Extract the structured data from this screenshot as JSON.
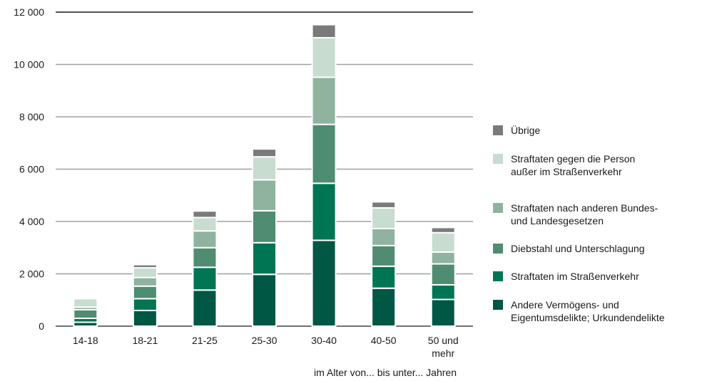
{
  "chart_data": {
    "type": "bar",
    "stacked": true,
    "title": "",
    "xlabel": "im Alter von... bis unter... Jahren",
    "ylabel": "",
    "ylim": [
      0,
      12000
    ],
    "yticks": [
      0,
      2000,
      4000,
      6000,
      8000,
      10000,
      12000
    ],
    "ytick_labels": [
      "0",
      "2 000",
      "4 000",
      "6 000",
      "8 000",
      "10 000",
      "12 000"
    ],
    "grid": true,
    "legend_position": "right",
    "categories": [
      [
        "14-18"
      ],
      [
        "18-21"
      ],
      [
        "21-25"
      ],
      [
        "25-30"
      ],
      [
        "30-40"
      ],
      [
        "40-50"
      ],
      [
        "50 und",
        "mehr"
      ]
    ],
    "series": [
      {
        "name": [
          "Andere Vermögens- und",
          "Eigentumsdelikte; Urkundendelikte"
        ],
        "color": "#005744",
        "values": [
          150,
          600,
          1380,
          1980,
          3280,
          1450,
          1020
        ]
      },
      {
        "name": [
          "Straftaten im Straßenverkehr"
        ],
        "color": "#007554",
        "values": [
          150,
          450,
          870,
          1210,
          2180,
          840,
          560
        ]
      },
      {
        "name": [
          "Diebstahl und Unterschlagung"
        ],
        "color": "#4f8c71",
        "values": [
          330,
          480,
          750,
          1220,
          2250,
          790,
          800
        ]
      },
      {
        "name": [
          "Straftaten nach anderen Bundes-",
          "und Landesgesetzen"
        ],
        "color": "#8fb39e",
        "values": [
          100,
          330,
          640,
          1180,
          1800,
          650,
          450
        ]
      },
      {
        "name": [
          "Straftaten gegen die Person",
          "außer im Straßenverkehr"
        ],
        "color": "#c8dcd0",
        "values": [
          320,
          370,
          510,
          880,
          1510,
          790,
          740
        ]
      },
      {
        "name": [
          "Übrige"
        ],
        "color": "#7a7a7a",
        "values": [
          50,
          120,
          250,
          300,
          500,
          230,
          200
        ]
      }
    ]
  }
}
